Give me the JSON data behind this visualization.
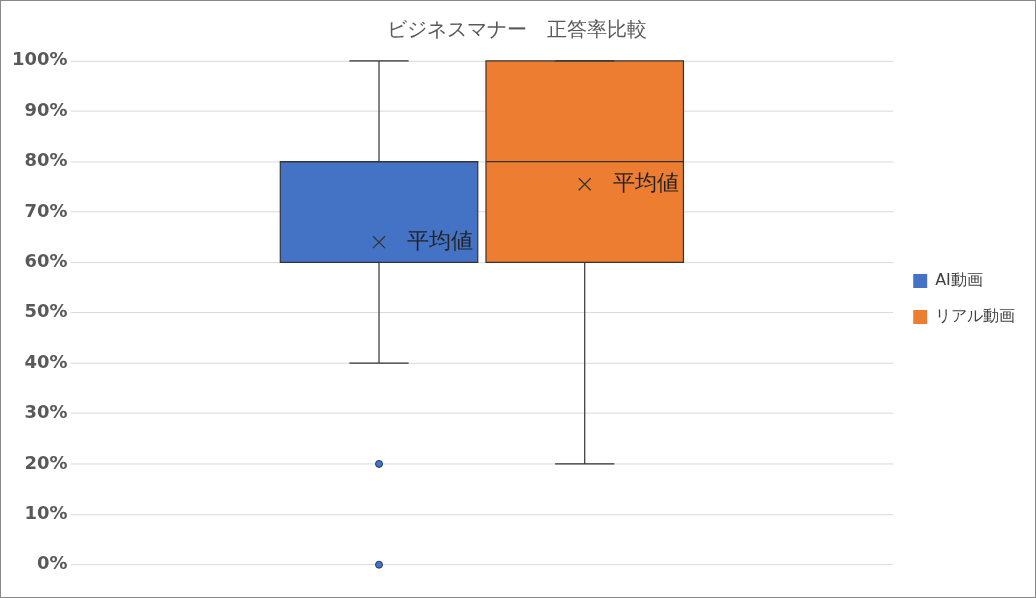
{
  "chart_data": {
    "type": "box",
    "title": "ビジネスマナー　正答率比較",
    "categories": [
      null
    ],
    "series": [
      {
        "name": "AI動画",
        "color": "#4472c4",
        "boxes": [
          {
            "low": 40,
            "q1": 60,
            "median": 80,
            "q3": 80,
            "high": 100,
            "mean": 64,
            "outliers": [
              20,
              0
            ]
          }
        ]
      },
      {
        "name": "リアル動画",
        "color": "#ed7d31",
        "boxes": [
          {
            "low": 20,
            "q1": 60,
            "median": 80,
            "q3": 100,
            "high": 100,
            "mean": 75.5
          }
        ]
      }
    ],
    "ylim": [
      0,
      100
    ],
    "yticks": [
      {
        "value": 0,
        "label": "0%"
      },
      {
        "value": 10,
        "label": "10%"
      },
      {
        "value": 20,
        "label": "20%"
      },
      {
        "value": 30,
        "label": "30%"
      },
      {
        "value": 40,
        "label": "40%"
      },
      {
        "value": 50,
        "label": "50%"
      },
      {
        "value": 60,
        "label": "60%"
      },
      {
        "value": 70,
        "label": "70%"
      },
      {
        "value": 80,
        "label": "80%"
      },
      {
        "value": 90,
        "label": "90%"
      },
      {
        "value": 100,
        "label": "100%"
      }
    ],
    "annotations": [
      "平均値",
      "平均値"
    ],
    "grid": "y",
    "legend": "right"
  }
}
